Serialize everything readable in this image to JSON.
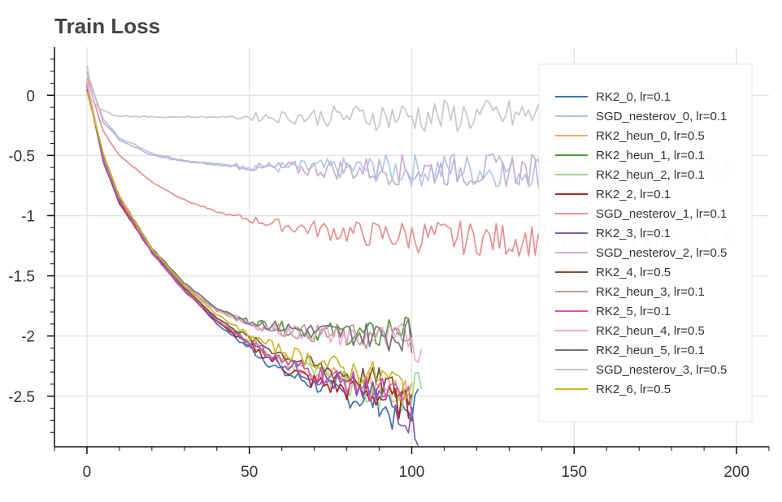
{
  "chart_data": {
    "type": "line",
    "title": "Train Loss",
    "xlabel": "",
    "ylabel": "",
    "xlim": [
      -10,
      210
    ],
    "ylim": [
      -2.92,
      0.4
    ],
    "x_ticks": [
      0,
      50,
      100,
      150,
      200
    ],
    "x_tick_labels": [
      "0",
      "50",
      "100",
      "150",
      "200"
    ],
    "y_ticks": [
      0,
      -0.5,
      -1,
      -1.5,
      -2,
      -2.5
    ],
    "y_tick_labels": [
      "0",
      "-0.5",
      "-1",
      "-1.5",
      "-2",
      "-2.5"
    ],
    "grid": true,
    "legend_position": "top-right",
    "series": [
      {
        "name": "RK2_0, lr=0.1",
        "color": "#3a72b0",
        "x": [
          0,
          5,
          10,
          20,
          30,
          40,
          50,
          60,
          70,
          80,
          90,
          95,
          100,
          102
        ],
        "y": [
          0.1,
          -0.55,
          -0.9,
          -1.3,
          -1.6,
          -1.9,
          -2.1,
          -2.3,
          -2.4,
          -2.5,
          -2.55,
          -2.7,
          -2.6,
          -2.55
        ]
      },
      {
        "name": "SGD_nesterov_0, lr=0.1",
        "color": "#aec7e8",
        "x": [
          0,
          5,
          10,
          20,
          30,
          40,
          50,
          60,
          70,
          80,
          90,
          100,
          110,
          120,
          130,
          140,
          150,
          160,
          170,
          180,
          190,
          200
        ],
        "y": [
          0.18,
          -0.2,
          -0.35,
          -0.48,
          -0.54,
          -0.57,
          -0.59,
          -0.6,
          -0.605,
          -0.61,
          -0.615,
          -0.62,
          -0.62,
          -0.625,
          -0.625,
          -0.625,
          -0.625,
          -0.628,
          -0.628,
          -0.628,
          -0.63,
          -0.63
        ]
      },
      {
        "name": "RK2_heun_0, lr=0.5",
        "color": "#f0a868",
        "x": [
          0,
          5,
          10,
          20,
          30,
          40,
          50,
          60,
          70,
          80,
          90,
          100
        ],
        "y": [
          0.12,
          -0.52,
          -0.88,
          -1.3,
          -1.6,
          -1.88,
          -2.05,
          -2.2,
          -2.3,
          -2.35,
          -2.4,
          -2.45
        ]
      },
      {
        "name": "RK2_heun_1, lr=0.1",
        "color": "#4f9d3a",
        "x": [
          0,
          5,
          10,
          20,
          30,
          40,
          50,
          60,
          70,
          80,
          90,
          95,
          100
        ],
        "y": [
          0.05,
          -0.5,
          -0.85,
          -1.28,
          -1.58,
          -1.78,
          -1.88,
          -1.93,
          -1.96,
          -1.98,
          -2.0,
          -1.9,
          -2.0
        ]
      },
      {
        "name": "RK2_heun_2, lr=0.1",
        "color": "#98df8a",
        "x": [
          0,
          5,
          10,
          20,
          30,
          40,
          50,
          60,
          70,
          80,
          90,
          95,
          100,
          103
        ],
        "y": [
          0.1,
          -0.53,
          -0.87,
          -1.3,
          -1.6,
          -1.85,
          -2.05,
          -2.2,
          -2.3,
          -2.4,
          -2.5,
          -2.55,
          -2.45,
          -2.3
        ]
      },
      {
        "name": "RK2_2, lr=0.1",
        "color": "#b22222",
        "x": [
          0,
          5,
          10,
          20,
          30,
          40,
          50,
          60,
          70,
          80,
          90,
          95,
          100
        ],
        "y": [
          0.08,
          -0.54,
          -0.89,
          -1.31,
          -1.62,
          -1.88,
          -2.08,
          -2.25,
          -2.38,
          -2.45,
          -2.5,
          -2.55,
          -2.6
        ]
      },
      {
        "name": "SGD_nesterov_1, lr=0.1",
        "color": "#e8908e",
        "x": [
          0,
          5,
          10,
          20,
          30,
          40,
          50,
          60,
          70,
          80,
          90,
          100,
          110,
          120,
          130,
          140,
          150,
          160,
          170,
          180,
          190,
          200
        ],
        "y": [
          0.15,
          -0.3,
          -0.5,
          -0.72,
          -0.87,
          -0.97,
          -1.03,
          -1.08,
          -1.11,
          -1.14,
          -1.16,
          -1.17,
          -1.18,
          -1.19,
          -1.2,
          -1.2,
          -1.21,
          -1.21,
          -1.21,
          -1.21,
          -1.21,
          -1.21
        ]
      },
      {
        "name": "RK2_3, lr=0.1",
        "color": "#7b5cb8",
        "x": [
          0,
          5,
          10,
          20,
          30,
          40,
          50,
          60,
          70,
          80,
          90,
          95,
          100,
          102
        ],
        "y": [
          0.1,
          -0.54,
          -0.88,
          -1.3,
          -1.62,
          -1.87,
          -2.06,
          -2.22,
          -2.33,
          -2.42,
          -2.5,
          -2.6,
          -2.7,
          -2.8
        ]
      },
      {
        "name": "SGD_nesterov_2, lr=0.5",
        "color": "#c5b0d5",
        "x": [
          0,
          5,
          10,
          20,
          30,
          40,
          50,
          60,
          70,
          80,
          90,
          100,
          110,
          120,
          130,
          140,
          150,
          160,
          170,
          180,
          190,
          200
        ],
        "y": [
          0.2,
          -0.22,
          -0.37,
          -0.5,
          -0.55,
          -0.58,
          -0.6,
          -0.605,
          -0.61,
          -0.615,
          -0.62,
          -0.62,
          -0.62,
          -0.625,
          -0.625,
          -0.625,
          -0.625,
          -0.628,
          -0.628,
          -0.628,
          -0.63,
          -0.63
        ]
      },
      {
        "name": "RK2_4, lr=0.5",
        "color": "#7a4f3a",
        "x": [
          0,
          5,
          10,
          20,
          30,
          40,
          50,
          60,
          70,
          80,
          90,
          95,
          100
        ],
        "y": [
          0.06,
          -0.52,
          -0.86,
          -1.28,
          -1.6,
          -1.85,
          -2.02,
          -2.15,
          -2.25,
          -2.32,
          -2.38,
          -2.45,
          -2.5
        ]
      },
      {
        "name": "RK2_heun_3, lr=0.1",
        "color": "#c49c94",
        "x": [
          0,
          5,
          10,
          20,
          30,
          40,
          50,
          60,
          70,
          80,
          90,
          95,
          100
        ],
        "y": [
          0.07,
          -0.51,
          -0.85,
          -1.28,
          -1.58,
          -1.79,
          -1.9,
          -1.95,
          -1.98,
          -2.0,
          -2.02,
          -2.04,
          -2.05
        ]
      },
      {
        "name": "RK2_5, lr=0.1",
        "color": "#d94fb0",
        "x": [
          0,
          5,
          10,
          20,
          30,
          40,
          50,
          60,
          70,
          80,
          90,
          95,
          100
        ],
        "y": [
          0.09,
          -0.53,
          -0.88,
          -1.31,
          -1.63,
          -1.87,
          -2.05,
          -2.2,
          -2.3,
          -2.38,
          -2.45,
          -2.5,
          -2.55
        ]
      },
      {
        "name": "RK2_heun_4, lr=0.5",
        "color": "#f2a7d8",
        "x": [
          0,
          5,
          10,
          20,
          30,
          40,
          50,
          60,
          70,
          80,
          90,
          95,
          100,
          103
        ],
        "y": [
          0.1,
          -0.5,
          -0.84,
          -1.27,
          -1.57,
          -1.78,
          -1.9,
          -1.95,
          -1.98,
          -2.0,
          -2.02,
          -2.04,
          -2.0,
          -2.2
        ]
      },
      {
        "name": "RK2_heun_5, lr=0.1",
        "color": "#777777",
        "x": [
          0,
          5,
          10,
          20,
          30,
          40,
          50,
          60,
          70,
          80,
          90,
          95,
          100
        ],
        "y": [
          0.05,
          -0.5,
          -0.84,
          -1.27,
          -1.56,
          -1.77,
          -1.88,
          -1.93,
          -1.96,
          -1.98,
          -1.99,
          -2.0,
          -1.98
        ]
      },
      {
        "name": "SGD_nesterov_3, lr=0.5",
        "color": "#c7c7c7",
        "x": [
          0,
          2,
          4,
          6,
          8,
          10,
          15,
          20,
          30,
          40,
          50,
          60,
          70,
          80,
          90,
          100,
          110,
          120,
          130,
          140
        ],
        "y": [
          0.25,
          -0.05,
          -0.11,
          -0.14,
          -0.16,
          -0.17,
          -0.175,
          -0.18,
          -0.18,
          -0.18,
          -0.18,
          -0.178,
          -0.178,
          -0.176,
          -0.175,
          -0.175,
          -0.175,
          -0.173,
          -0.172,
          -0.17
        ]
      },
      {
        "name": "RK2_6, lr=0.5",
        "color": "#c8b92a",
        "x": [
          0,
          5,
          10,
          20,
          30,
          40,
          50,
          60,
          70,
          80,
          90,
          95,
          100
        ],
        "y": [
          0.03,
          -0.48,
          -0.84,
          -1.28,
          -1.58,
          -1.82,
          -2.0,
          -2.12,
          -2.2,
          -2.28,
          -2.33,
          -2.38,
          -2.42
        ]
      }
    ]
  }
}
